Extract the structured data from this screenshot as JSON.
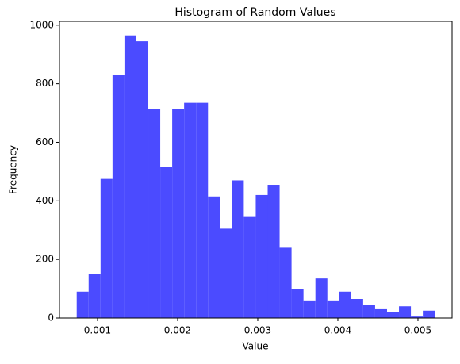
{
  "chart_data": {
    "type": "histogram",
    "title": "Histogram of Random Values",
    "x_label": "Value",
    "y_label": "Frequency",
    "bins": [
      0.00074,
      0.000889,
      0.001038,
      0.001187,
      0.001336,
      0.001485,
      0.001634,
      0.001783,
      0.001932,
      0.002081,
      0.00223,
      0.002379,
      0.002528,
      0.002677,
      0.002826,
      0.002975,
      0.003124,
      0.003273,
      0.003422,
      0.003571,
      0.00372,
      0.003869,
      0.004018,
      0.004167,
      0.004316,
      0.004465,
      0.004614,
      0.004763,
      0.004912,
      0.005061,
      0.00521
    ],
    "values": [
      90,
      150,
      475,
      830,
      965,
      945,
      715,
      515,
      715,
      735,
      735,
      415,
      305,
      470,
      345,
      420,
      455,
      240,
      100,
      60,
      135,
      60,
      90,
      65,
      45,
      30,
      20,
      40,
      5,
      25
    ],
    "color": "#4b4bff",
    "xlim": [
      0.000525,
      0.005426
    ],
    "xticks": [
      0.001,
      0.002,
      0.003,
      0.004,
      0.005
    ],
    "ylim": [
      0,
      1013
    ],
    "yticks": [
      0,
      200,
      400,
      600,
      800,
      1000
    ]
  }
}
